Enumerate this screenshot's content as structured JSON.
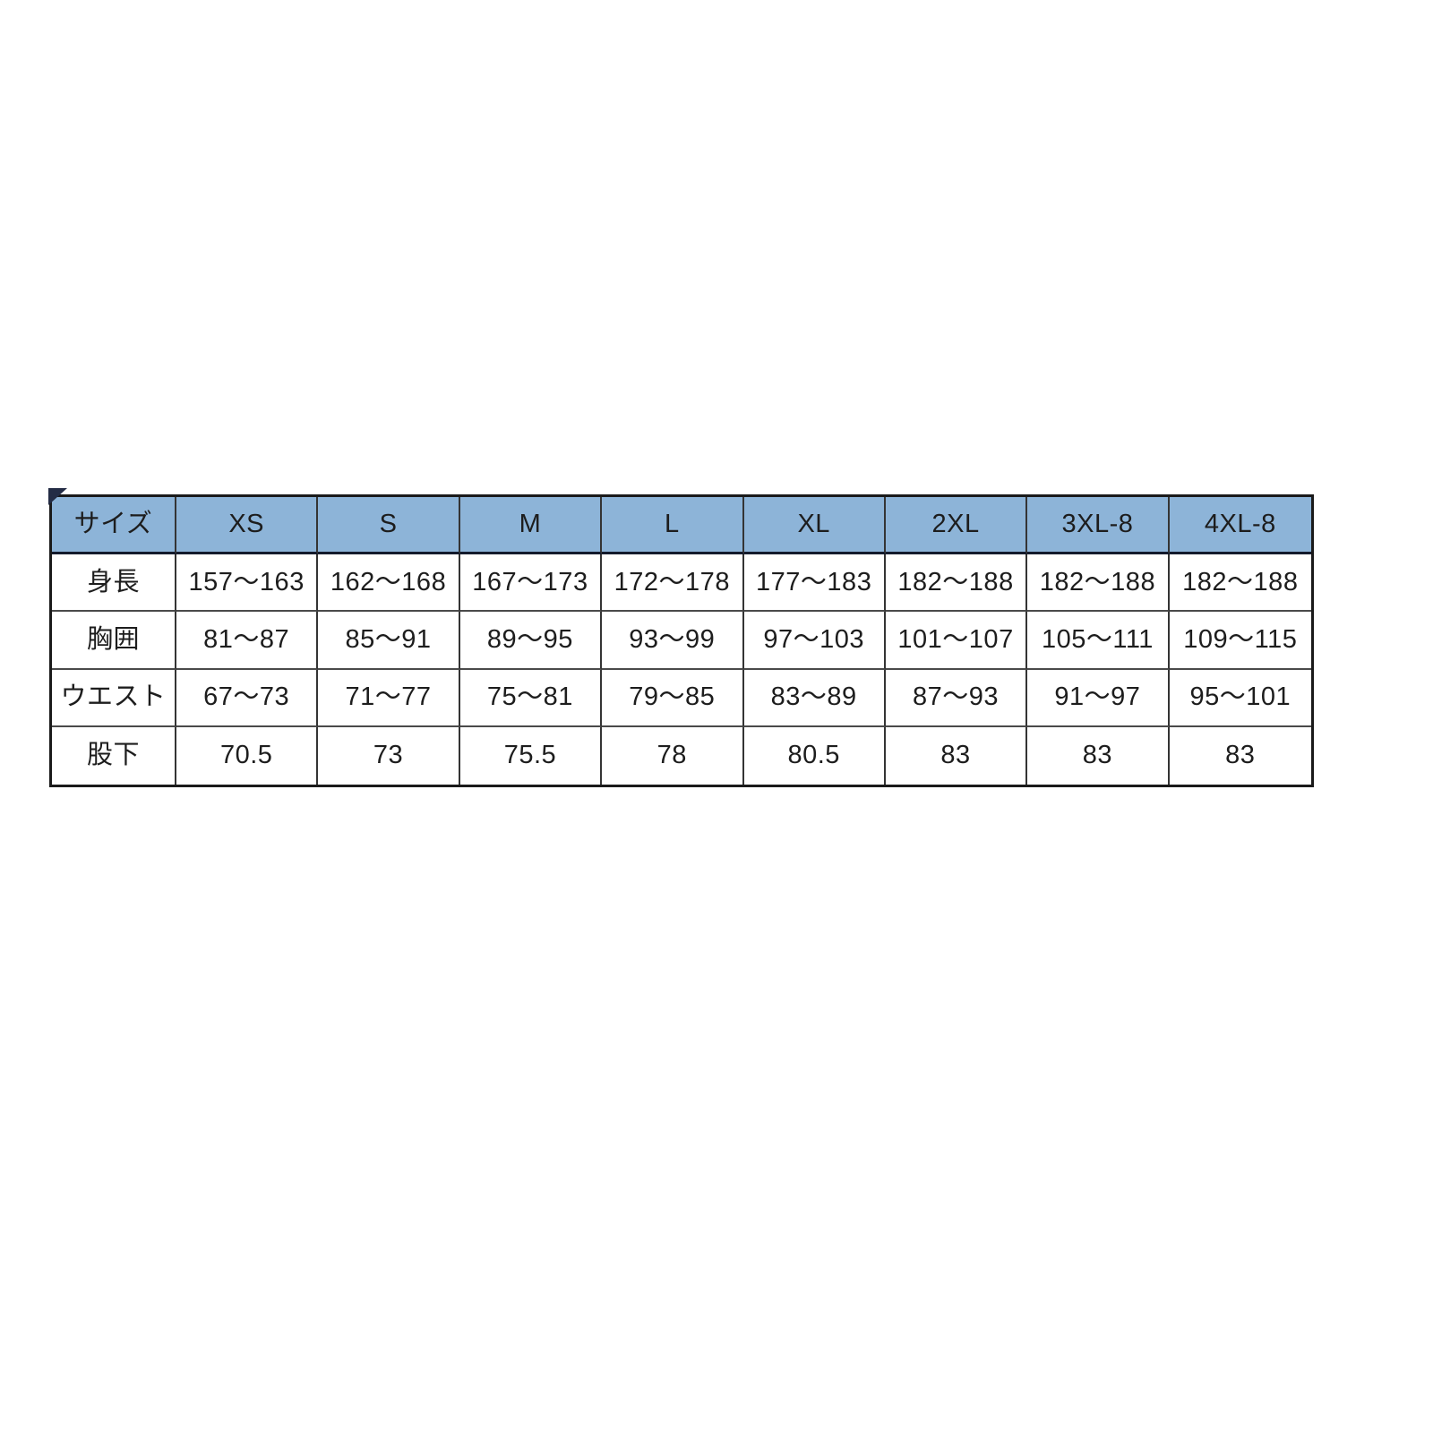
{
  "colors": {
    "page_background": "#ffffff",
    "header_background": "#8db4d8",
    "outer_border": "#1a1a1a",
    "vertical_grid_line": "#343434",
    "horizontal_grid_line": "#4a4a4a",
    "header_underline": "#141b2d",
    "text": "#1d1d1d",
    "corner_triangle": "#242c45"
  },
  "chart_data": {
    "type": "table",
    "columns": [
      "サイズ",
      "XS",
      "S",
      "M",
      "L",
      "XL",
      "2XL",
      "3XL-8",
      "4XL-8"
    ],
    "row_labels": [
      "身長",
      "胸囲",
      "ウエスト",
      "股下"
    ],
    "rows": [
      [
        "身長",
        "157〜163",
        "162〜168",
        "167〜173",
        "172〜178",
        "177〜183",
        "182〜188",
        "182〜188",
        "182〜188"
      ],
      [
        "胸囲",
        "81〜87",
        "85〜91",
        "89〜95",
        "93〜99",
        "97〜103",
        "101〜107",
        "105〜111",
        "109〜115"
      ],
      [
        "ウエスト",
        "67〜73",
        "71〜77",
        "75〜81",
        "79〜85",
        "83〜89",
        "87〜93",
        "91〜97",
        "95〜101"
      ],
      [
        "股下",
        "70.5",
        "73",
        "75.5",
        "78",
        "80.5",
        "83",
        "83",
        "83"
      ]
    ]
  }
}
